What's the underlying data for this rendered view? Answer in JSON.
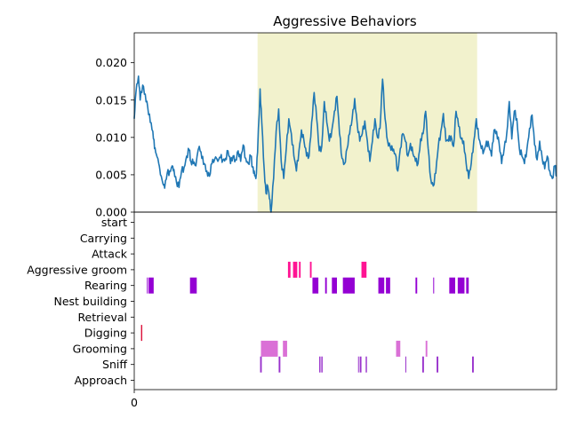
{
  "chart_data": [
    {
      "panel": "top",
      "type": "line",
      "title": "Aggressive Behaviors",
      "xlabel": "",
      "ylabel": "",
      "xlim": [
        0,
        500
      ],
      "ylim": [
        0.0,
        0.024
      ],
      "yticks": [
        0.0,
        0.005,
        0.01,
        0.015,
        0.02
      ],
      "ytick_labels": [
        "0.000",
        "0.005",
        "0.010",
        "0.015",
        "0.020"
      ],
      "grid": false,
      "line_color": "#1f77b4",
      "highlight": {
        "x_start": 146,
        "x_end": 406,
        "color": "#f2f2cd"
      },
      "keypoints": [
        [
          0,
          0.0125
        ],
        [
          2,
          0.016
        ],
        [
          5,
          0.0182
        ],
        [
          7,
          0.015
        ],
        [
          10,
          0.017
        ],
        [
          13,
          0.0158
        ],
        [
          16,
          0.014
        ],
        [
          19,
          0.012
        ],
        [
          22,
          0.0108
        ],
        [
          24,
          0.0085
        ],
        [
          26,
          0.0078
        ],
        [
          29,
          0.0065
        ],
        [
          31,
          0.005
        ],
        [
          34,
          0.0038
        ],
        [
          36,
          0.0032
        ],
        [
          39,
          0.0052
        ],
        [
          42,
          0.0055
        ],
        [
          45,
          0.0062
        ],
        [
          47,
          0.0057
        ],
        [
          50,
          0.004
        ],
        [
          53,
          0.0033
        ],
        [
          56,
          0.0055
        ],
        [
          59,
          0.006
        ],
        [
          62,
          0.0075
        ],
        [
          65,
          0.0083
        ],
        [
          67,
          0.0068
        ],
        [
          70,
          0.0065
        ],
        [
          73,
          0.0062
        ],
        [
          77,
          0.0088
        ],
        [
          80,
          0.0072
        ],
        [
          83,
          0.0065
        ],
        [
          86,
          0.0055
        ],
        [
          89,
          0.0048
        ],
        [
          92,
          0.0065
        ],
        [
          95,
          0.007
        ],
        [
          99,
          0.0068
        ],
        [
          102,
          0.0073
        ],
        [
          105,
          0.007
        ],
        [
          108,
          0.0072
        ],
        [
          111,
          0.0082
        ],
        [
          114,
          0.0065
        ],
        [
          117,
          0.0075
        ],
        [
          120,
          0.007
        ],
        [
          123,
          0.0082
        ],
        [
          126,
          0.0068
        ],
        [
          129,
          0.009
        ],
        [
          132,
          0.0072
        ],
        [
          135,
          0.0065
        ],
        [
          138,
          0.0075
        ],
        [
          140,
          0.006
        ],
        [
          142,
          0.0055
        ],
        [
          144,
          0.0045
        ],
        [
          146,
          0.008
        ],
        [
          149,
          0.0165
        ],
        [
          151,
          0.012
        ],
        [
          154,
          0.0055
        ],
        [
          156,
          0.0025
        ],
        [
          158,
          0.0035
        ],
        [
          160,
          0.0018
        ],
        [
          162,
          0.0
        ],
        [
          165,
          0.0045
        ],
        [
          168,
          0.0108
        ],
        [
          171,
          0.0138
        ],
        [
          174,
          0.0068
        ],
        [
          177,
          0.0045
        ],
        [
          180,
          0.0085
        ],
        [
          183,
          0.0125
        ],
        [
          186,
          0.0105
        ],
        [
          189,
          0.0075
        ],
        [
          192,
          0.0055
        ],
        [
          195,
          0.0082
        ],
        [
          198,
          0.011
        ],
        [
          201,
          0.0095
        ],
        [
          204,
          0.0075
        ],
        [
          207,
          0.0075
        ],
        [
          210,
          0.012
        ],
        [
          213,
          0.016
        ],
        [
          216,
          0.0125
        ],
        [
          219,
          0.0082
        ],
        [
          222,
          0.0088
        ],
        [
          225,
          0.0148
        ],
        [
          228,
          0.012
        ],
        [
          231,
          0.0095
        ],
        [
          234,
          0.011
        ],
        [
          237,
          0.0135
        ],
        [
          240,
          0.0155
        ],
        [
          243,
          0.0105
        ],
        [
          246,
          0.0072
        ],
        [
          249,
          0.0065
        ],
        [
          252,
          0.0085
        ],
        [
          255,
          0.0105
        ],
        [
          258,
          0.0125
        ],
        [
          261,
          0.0152
        ],
        [
          264,
          0.0118
        ],
        [
          267,
          0.0095
        ],
        [
          270,
          0.0105
        ],
        [
          273,
          0.0122
        ],
        [
          276,
          0.0095
        ],
        [
          279,
          0.0068
        ],
        [
          282,
          0.0095
        ],
        [
          285,
          0.0125
        ],
        [
          288,
          0.01
        ],
        [
          291,
          0.0112
        ],
        [
          294,
          0.0178
        ],
        [
          297,
          0.0125
        ],
        [
          300,
          0.0095
        ],
        [
          303,
          0.0088
        ],
        [
          306,
          0.0082
        ],
        [
          309,
          0.0078
        ],
        [
          312,
          0.0055
        ],
        [
          315,
          0.0085
        ],
        [
          318,
          0.0105
        ],
        [
          321,
          0.0095
        ],
        [
          324,
          0.0075
        ],
        [
          327,
          0.0092
        ],
        [
          330,
          0.0078
        ],
        [
          333,
          0.0068
        ],
        [
          336,
          0.0065
        ],
        [
          339,
          0.0098
        ],
        [
          342,
          0.0105
        ],
        [
          345,
          0.0135
        ],
        [
          348,
          0.0085
        ],
        [
          351,
          0.0045
        ],
        [
          354,
          0.0035
        ],
        [
          357,
          0.0052
        ],
        [
          360,
          0.0088
        ],
        [
          363,
          0.0108
        ],
        [
          366,
          0.0132
        ],
        [
          369,
          0.0095
        ],
        [
          372,
          0.0095
        ],
        [
          375,
          0.0102
        ],
        [
          378,
          0.0088
        ],
        [
          381,
          0.0135
        ],
        [
          384,
          0.0115
        ],
        [
          387,
          0.0098
        ],
        [
          390,
          0.0095
        ],
        [
          393,
          0.0065
        ],
        [
          396,
          0.0045
        ],
        [
          399,
          0.0065
        ],
        [
          402,
          0.0095
        ],
        [
          405,
          0.0125
        ],
        [
          408,
          0.0098
        ],
        [
          411,
          0.0085
        ],
        [
          414,
          0.0082
        ],
        [
          417,
          0.0095
        ],
        [
          420,
          0.0088
        ],
        [
          423,
          0.0075
        ],
        [
          426,
          0.011
        ],
        [
          429,
          0.0108
        ],
        [
          432,
          0.0092
        ],
        [
          435,
          0.0065
        ],
        [
          438,
          0.0085
        ],
        [
          441,
          0.0105
        ],
        [
          444,
          0.0148
        ],
        [
          447,
          0.0098
        ],
        [
          450,
          0.0135
        ],
        [
          453,
          0.0125
        ],
        [
          456,
          0.0085
        ],
        [
          459,
          0.0075
        ],
        [
          462,
          0.0065
        ],
        [
          465,
          0.0085
        ],
        [
          468,
          0.0112
        ],
        [
          471,
          0.013
        ],
        [
          474,
          0.009
        ],
        [
          477,
          0.007
        ],
        [
          480,
          0.0095
        ],
        [
          483,
          0.0072
        ],
        [
          486,
          0.0058
        ],
        [
          489,
          0.0075
        ],
        [
          492,
          0.0055
        ],
        [
          495,
          0.0045
        ],
        [
          498,
          0.0062
        ],
        [
          500,
          0.0048
        ]
      ]
    },
    {
      "panel": "bottom",
      "type": "event-raster",
      "xlim": [
        0,
        500
      ],
      "xticks": [
        0
      ],
      "xtick_labels": [
        "0"
      ],
      "behaviors": [
        "start",
        "Carrying",
        "Attack",
        "Aggressive groom",
        "Rearing",
        "Nest building",
        "Retrieval",
        "Digging",
        "Grooming",
        "Sniff",
        "Approach"
      ],
      "events": [
        {
          "behavior": "Aggressive groom",
          "color": "#ff1493",
          "intervals": [
            [
              182,
              185
            ],
            [
              188,
              193
            ],
            [
              195,
              197
            ],
            [
              208,
              210
            ],
            [
              269,
              275
            ]
          ]
        },
        {
          "behavior": "Rearing",
          "color": "#9400d3",
          "intervals": [
            [
              15,
              16
            ],
            [
              17,
              23
            ],
            [
              66,
              74
            ],
            [
              211,
              218
            ],
            [
              226,
              228
            ],
            [
              234,
              240
            ],
            [
              247,
              261
            ],
            [
              289,
              296
            ],
            [
              298,
              303
            ],
            [
              333,
              335
            ],
            [
              354,
              355
            ],
            [
              373,
              380
            ],
            [
              383,
              391
            ],
            [
              393,
              396
            ]
          ]
        },
        {
          "behavior": "Digging",
          "color": "#dc143c",
          "intervals": [
            [
              8,
              9.5
            ]
          ]
        },
        {
          "behavior": "Grooming",
          "color": "#da70d6",
          "intervals": [
            [
              150,
              170
            ],
            [
              176,
              181
            ],
            [
              310,
              315
            ],
            [
              345,
              347
            ]
          ]
        },
        {
          "behavior": "Sniff",
          "color": "#9932cc",
          "intervals": [
            [
              149,
              151
            ],
            [
              171,
              173
            ],
            [
              219,
              220.5
            ],
            [
              221.5,
              223
            ],
            [
              265,
              266
            ],
            [
              267,
              269
            ],
            [
              274,
              275.5
            ],
            [
              321,
              322
            ],
            [
              341,
              343
            ],
            [
              358,
              360
            ],
            [
              400,
              402
            ]
          ]
        }
      ]
    }
  ]
}
